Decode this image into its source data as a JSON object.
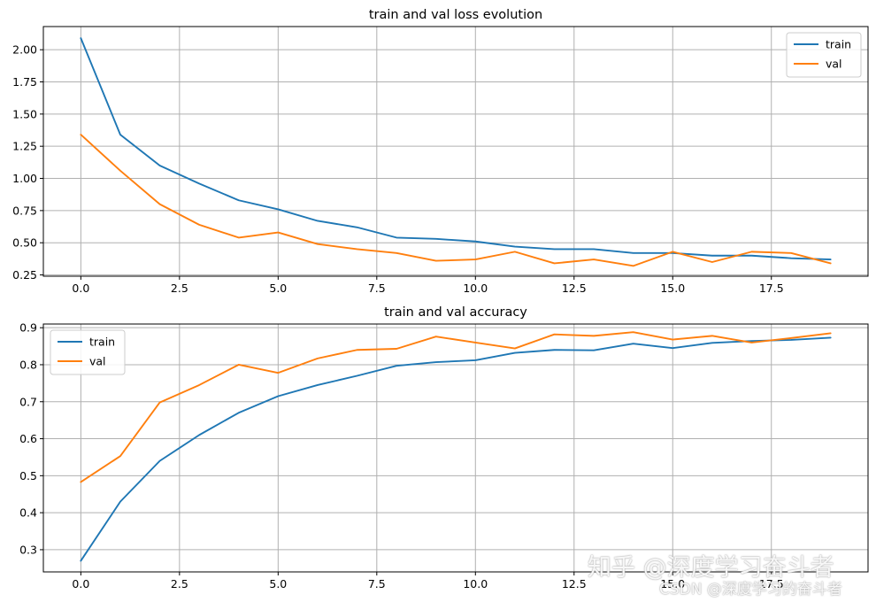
{
  "chart_data": [
    {
      "type": "line",
      "title": "train and val loss evolution",
      "xlabel": "",
      "ylabel": "",
      "xlim": [
        -0.95,
        19.95
      ],
      "ylim": [
        0.24,
        2.18
      ],
      "xticks": [
        0,
        2.5,
        5,
        7.5,
        10,
        12.5,
        15,
        17.5
      ],
      "xtick_labels": [
        "0.0",
        "2.5",
        "5.0",
        "7.5",
        "10.0",
        "12.5",
        "15.0",
        "17.5"
      ],
      "yticks": [
        0.25,
        0.5,
        0.75,
        1.0,
        1.25,
        1.5,
        1.75,
        2.0
      ],
      "ytick_labels": [
        "0.25",
        "0.50",
        "0.75",
        "1.00",
        "1.25",
        "1.50",
        "1.75",
        "2.00"
      ],
      "grid": true,
      "legend": "upper-right",
      "x": [
        0,
        1,
        2,
        3,
        4,
        5,
        6,
        7,
        8,
        9,
        10,
        11,
        12,
        13,
        14,
        15,
        16,
        17,
        18,
        19
      ],
      "series": [
        {
          "name": "train",
          "color": "#1f77b4",
          "values": [
            2.09,
            1.34,
            1.1,
            0.96,
            0.83,
            0.76,
            0.67,
            0.62,
            0.54,
            0.53,
            0.51,
            0.47,
            0.45,
            0.45,
            0.42,
            0.42,
            0.4,
            0.4,
            0.38,
            0.37
          ]
        },
        {
          "name": "val",
          "color": "#ff7f0e",
          "values": [
            1.34,
            1.06,
            0.8,
            0.64,
            0.54,
            0.58,
            0.49,
            0.45,
            0.42,
            0.36,
            0.37,
            0.43,
            0.34,
            0.37,
            0.32,
            0.43,
            0.35,
            0.43,
            0.42,
            0.34
          ]
        }
      ]
    },
    {
      "type": "line",
      "title": "train and val accuracy",
      "xlabel": "",
      "ylabel": "",
      "xlim": [
        -0.95,
        19.95
      ],
      "ylim": [
        0.24,
        0.91
      ],
      "xticks": [
        0,
        2.5,
        5,
        7.5,
        10,
        12.5,
        15,
        17.5
      ],
      "xtick_labels": [
        "0.0",
        "2.5",
        "5.0",
        "7.5",
        "10.0",
        "12.5",
        "15.0",
        "17.5"
      ],
      "yticks": [
        0.3,
        0.4,
        0.5,
        0.6,
        0.7,
        0.8,
        0.9
      ],
      "ytick_labels": [
        "0.3",
        "0.4",
        "0.5",
        "0.6",
        "0.7",
        "0.8",
        "0.9"
      ],
      "grid": true,
      "legend": "upper-left",
      "x": [
        0,
        1,
        2,
        3,
        4,
        5,
        6,
        7,
        8,
        9,
        10,
        11,
        12,
        13,
        14,
        15,
        16,
        17,
        18,
        19
      ],
      "series": [
        {
          "name": "train",
          "color": "#1f77b4",
          "values": [
            0.27,
            0.43,
            0.54,
            0.61,
            0.67,
            0.715,
            0.745,
            0.77,
            0.797,
            0.807,
            0.812,
            0.832,
            0.84,
            0.839,
            0.857,
            0.845,
            0.859,
            0.864,
            0.867,
            0.873
          ]
        },
        {
          "name": "val",
          "color": "#ff7f0e",
          "values": [
            0.483,
            0.553,
            0.698,
            0.745,
            0.8,
            0.778,
            0.817,
            0.84,
            0.843,
            0.876,
            0.86,
            0.844,
            0.882,
            0.878,
            0.888,
            0.868,
            0.878,
            0.86,
            0.872,
            0.885
          ]
        }
      ]
    }
  ],
  "watermarks": {
    "primary": "知乎 @深度学习奋斗者",
    "secondary": "CSDN @深度学习的奋斗者"
  }
}
